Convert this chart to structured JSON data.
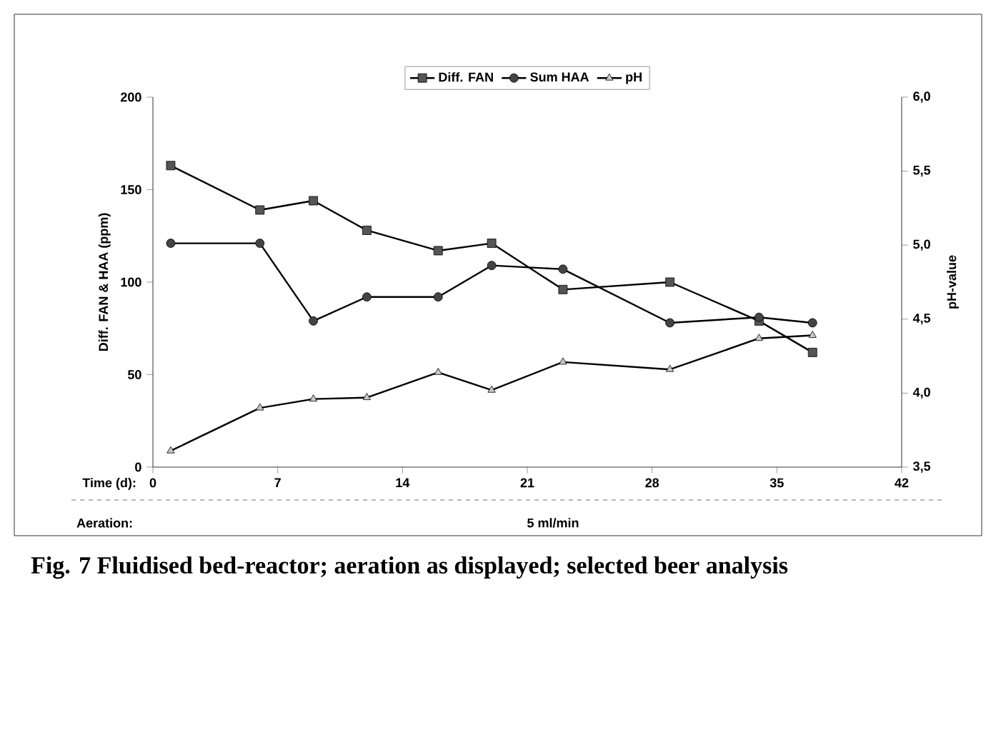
{
  "chart_data": {
    "type": "line",
    "xlabel": "Time (d):",
    "ylabel": "Diff. FAN & HAA (ppm)",
    "y2label": "pH-value",
    "x": [
      1,
      6,
      9,
      12,
      16,
      19,
      23,
      29,
      34,
      37
    ],
    "series": [
      {
        "name": "Diff. FAN",
        "color": "#555555",
        "marker": "square",
        "values": [
          163,
          139,
          144,
          128,
          117,
          121,
          96,
          100,
          79,
          62
        ]
      },
      {
        "name": "Sum HAA",
        "color": "#444444",
        "marker": "circle",
        "values": [
          121,
          121,
          79,
          92,
          92,
          109,
          107,
          78,
          81,
          78
        ]
      },
      {
        "name": "pH",
        "color": "#c8c8c8",
        "marker": "triangle",
        "axis": "y2",
        "values": [
          3.61,
          3.9,
          3.96,
          3.97,
          4.14,
          4.02,
          4.21,
          4.16,
          4.37,
          4.39
        ]
      }
    ],
    "xlim": [
      0,
      42
    ],
    "xticks": [
      0,
      7,
      14,
      21,
      28,
      35,
      42
    ],
    "ylim": [
      0,
      200
    ],
    "yticks": [
      0,
      50,
      100,
      150,
      200
    ],
    "y2lim": [
      3.5,
      6.0
    ],
    "y2ticks": [
      {
        "value": 3.5,
        "label": "3,5"
      },
      {
        "value": 4.0,
        "label": "4,0"
      },
      {
        "value": 4.5,
        "label": "4,5"
      },
      {
        "value": 5.0,
        "label": "5,0"
      },
      {
        "value": 5.5,
        "label": "5,5"
      },
      {
        "value": 6.0,
        "label": "6,0"
      }
    ],
    "legend": "top",
    "grid": false,
    "line_style": "solid",
    "annotations": [
      "Aeration:",
      "5 ml/min",
      "Fig. 7   Fluidised bed-reactor; aeration as displayed; selected beer analysis"
    ]
  }
}
